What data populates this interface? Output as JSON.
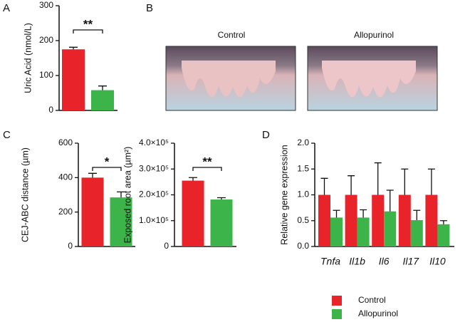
{
  "panel_labels": [
    "A",
    "B",
    "C",
    "D"
  ],
  "photo_titles": [
    "Control",
    "Allopurinol"
  ],
  "chart_data": [
    {
      "type": "bar",
      "y_label": "Uric Acid (nmol/L)",
      "values": [
        175,
        58
      ],
      "errors": [
        6,
        12
      ],
      "colors": [
        "#e8232a",
        "#3cb44a"
      ],
      "ylim": [
        0,
        300
      ],
      "yticks": [
        0,
        100,
        200,
        300
      ],
      "significance": "**"
    },
    {
      "type": "bar",
      "y_label": "CEJ-ABC distance (µm)",
      "values": [
        400,
        285
      ],
      "errors": [
        25,
        32
      ],
      "colors": [
        "#e8232a",
        "#3cb44a"
      ],
      "ylim": [
        0,
        600
      ],
      "yticks": [
        0,
        200,
        400,
        600
      ],
      "significance": "*"
    },
    {
      "type": "bar",
      "y_label": "Exposed root area (µm²)",
      "values": [
        255000,
        182000
      ],
      "errors": [
        12000,
        7000
      ],
      "colors": [
        "#e8232a",
        "#3cb44a"
      ],
      "ylim": [
        0,
        400000
      ],
      "yticks": [
        0,
        {
          "value": 100000,
          "label": "1.0×10⁵"
        },
        {
          "value": 200000,
          "label": "2.0×10⁵"
        },
        {
          "value": 300000,
          "label": "3.0×10⁵"
        },
        {
          "value": 400000,
          "label": "4.0×10⁵"
        }
      ],
      "significance": "**"
    },
    {
      "type": "grouped_bar",
      "y_label": "Relative gene expression",
      "categories": [
        "Tnfa",
        "Il1b",
        "Il6",
        "Il17",
        "Il10"
      ],
      "series": [
        {
          "name": "Control",
          "color": "#e8232a",
          "values": [
            1.0,
            1.0,
            1.0,
            1.0,
            1.0
          ],
          "errors": [
            0.32,
            0.37,
            0.62,
            0.5,
            0.5
          ]
        },
        {
          "name": "Allopurinol",
          "color": "#3cb44a",
          "values": [
            0.56,
            0.56,
            0.68,
            0.51,
            0.43
          ],
          "errors": [
            0.14,
            0.15,
            0.41,
            0.19,
            0.07
          ]
        }
      ],
      "ylim": [
        0,
        2
      ],
      "yticks": [
        {
          "value": 0,
          "label": "0.0"
        },
        {
          "value": 0.5,
          "label": "0.5"
        },
        {
          "value": 1,
          "label": "1.0"
        },
        {
          "value": 1.5,
          "label": "1.5"
        },
        {
          "value": 2,
          "label": "2.0"
        }
      ]
    }
  ]
}
